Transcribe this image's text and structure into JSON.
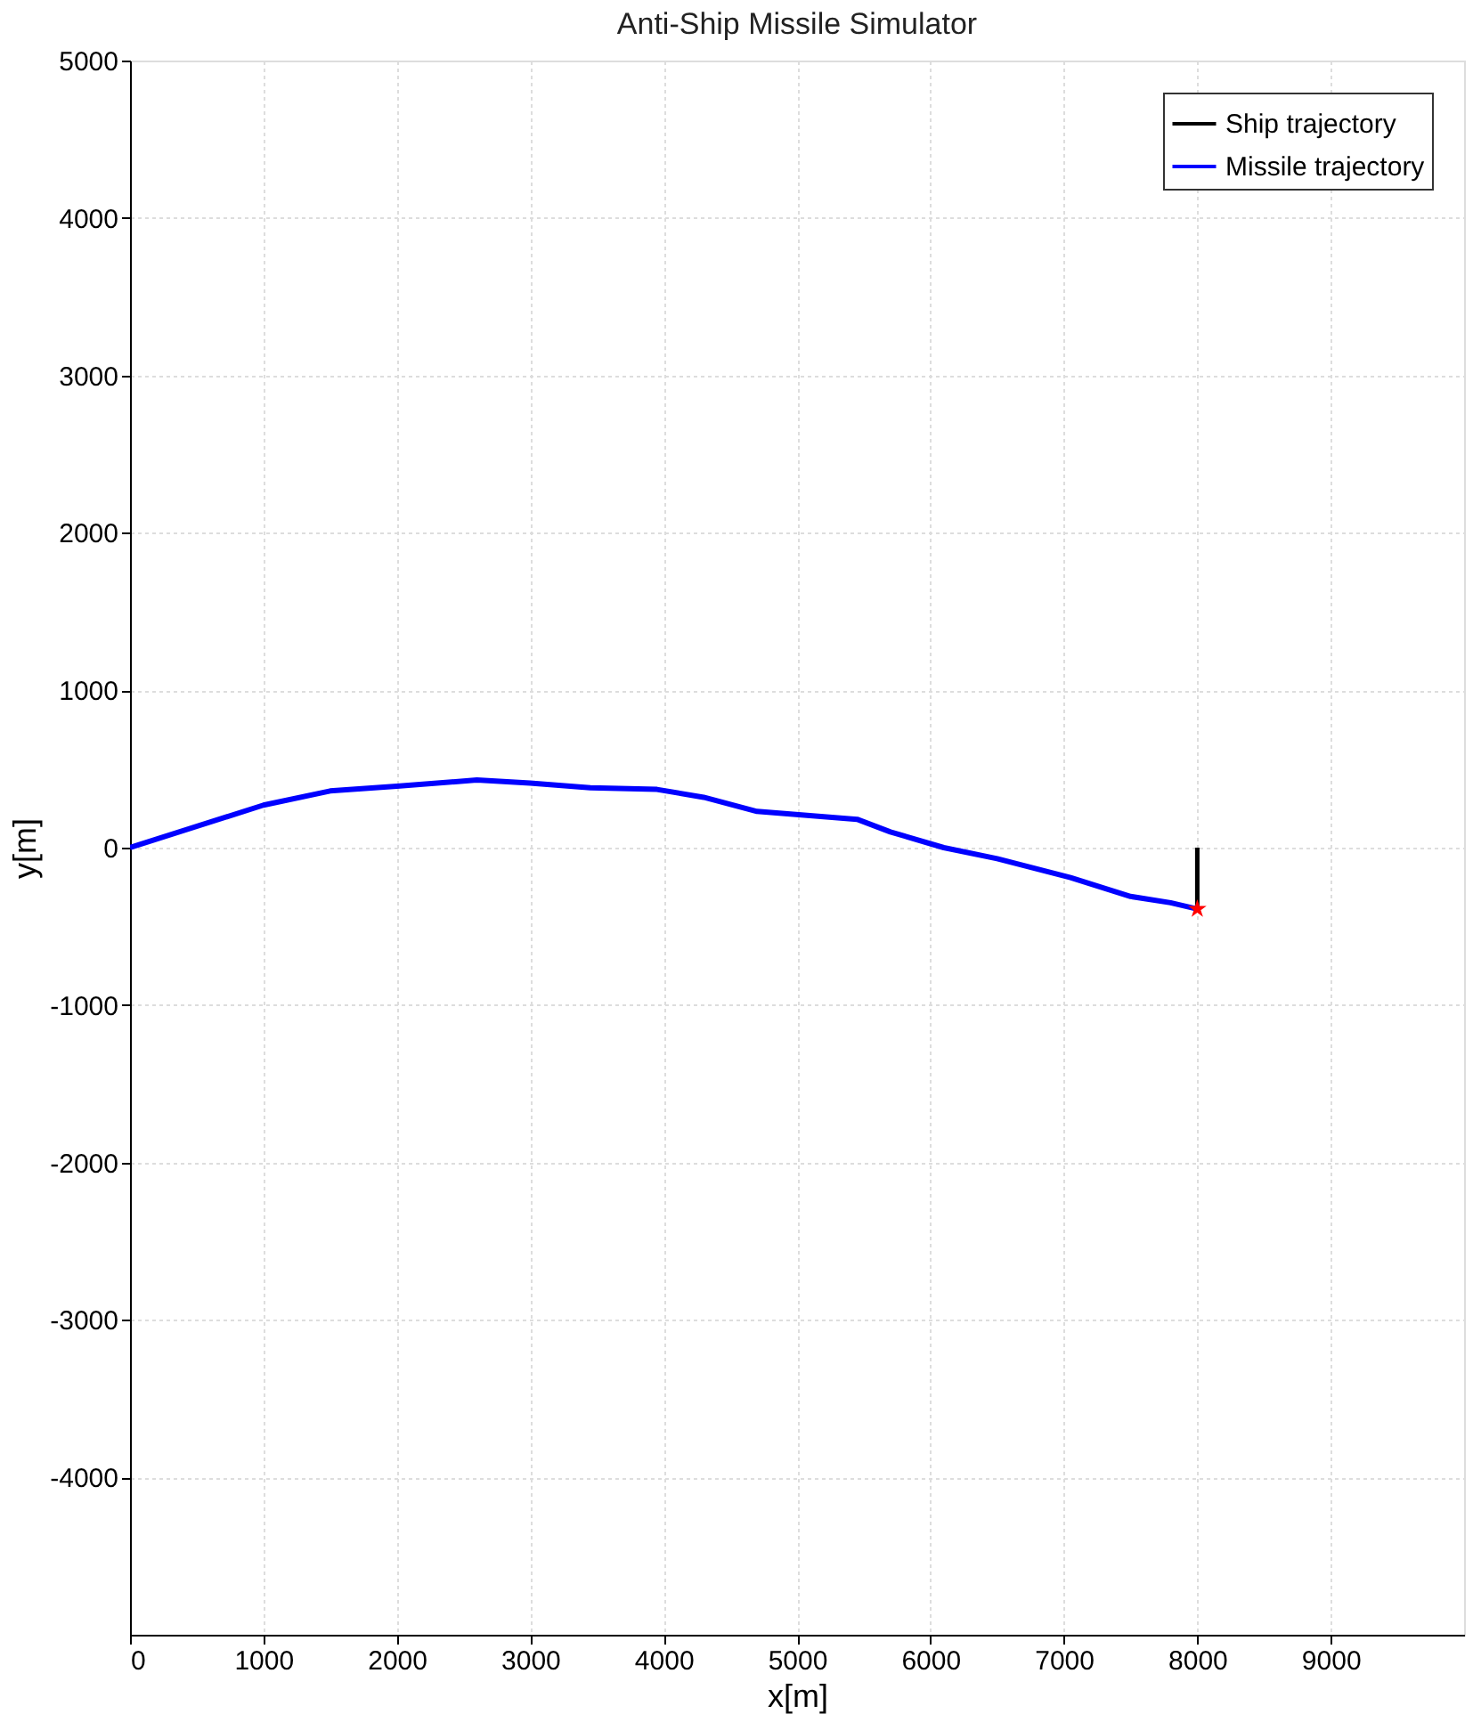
{
  "chart_data": {
    "type": "line",
    "title": "Anti-Ship Missile Simulator",
    "xlabel": "x[m]",
    "ylabel": "y[m]",
    "xlim": [
      0,
      10000
    ],
    "ylim": [
      -5000,
      5000
    ],
    "xticks": [
      0,
      1000,
      2000,
      3000,
      4000,
      5000,
      6000,
      7000,
      8000,
      9000
    ],
    "yticks": [
      -4000,
      -3000,
      -2000,
      -1000,
      0,
      1000,
      2000,
      3000,
      4000,
      5000
    ],
    "grid": true,
    "legend": "top right",
    "series": [
      {
        "name": "Ship trajectory",
        "color": "#000000",
        "x": [
          8000,
          8000
        ],
        "values": [
          0,
          -390
        ]
      },
      {
        "name": "Missile trajectory",
        "color": "#0000ff",
        "x": [
          0,
          1000,
          1500,
          2000,
          2600,
          3000,
          3450,
          3950,
          4300,
          4700,
          5450,
          5700,
          6100,
          6500,
          7050,
          7500,
          7800,
          8000
        ],
        "values": [
          0,
          270,
          360,
          390,
          430,
          410,
          380,
          370,
          320,
          230,
          180,
          100,
          0,
          -70,
          -190,
          -310,
          -350,
          -390
        ]
      },
      {
        "color": "#ff0000",
        "type": "scatter",
        "marker": "star",
        "x": [
          8000
        ],
        "values": [
          -390
        ]
      }
    ]
  }
}
